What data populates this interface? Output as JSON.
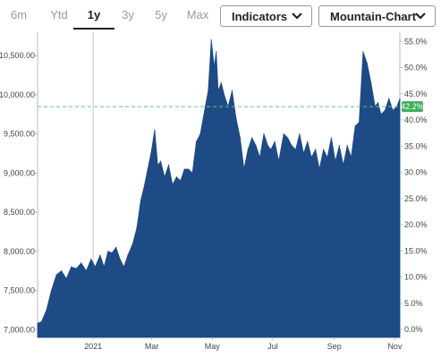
{
  "toolbar": {
    "tabs": [
      {
        "label": "6m",
        "active": false
      },
      {
        "label": "Ytd",
        "active": false
      },
      {
        "label": "1y",
        "active": true
      },
      {
        "label": "3y",
        "active": false
      },
      {
        "label": "5y",
        "active": false
      },
      {
        "label": "Max",
        "active": false
      }
    ],
    "indicators_label": "Indicators",
    "chart_type_label": "Mountain-Chart"
  },
  "colors": {
    "area_fill": "#1e4a86",
    "reference_line": "#5cc97a",
    "badge": "#3fae5a"
  },
  "chart_data": {
    "type": "area",
    "title": "",
    "xlabel": "",
    "ylabel": "",
    "x_tick_labels": [
      "2021",
      "Mar",
      "May",
      "Jul",
      "Sep",
      "Nov"
    ],
    "y_left_ticks": [
      "10,500.00",
      "10,000.00",
      "9,500.00",
      "9,000.00",
      "8,500.00",
      "8,000.00",
      "7,500.00",
      "7,000.00"
    ],
    "y_right_ticks": [
      "55.0%",
      "50.0%",
      "45.0%",
      "40.0%",
      "35.0%",
      "30.0%",
      "25.0%",
      "20.0%",
      "15.0%",
      "10.0%",
      "5.0%",
      "0.0%"
    ],
    "ylim": [
      6900,
      10800
    ],
    "reference_value": 9850,
    "current_change_label": "42.2%",
    "x": [
      "2020-11-06",
      "2020-11-10",
      "2020-11-15",
      "2020-11-20",
      "2020-11-25",
      "2020-11-30",
      "2020-12-05",
      "2020-12-10",
      "2020-12-15",
      "2020-12-20",
      "2020-12-25",
      "2020-12-30",
      "2021-01-03",
      "2021-01-08",
      "2021-01-12",
      "2021-01-16",
      "2021-01-20",
      "2021-01-24",
      "2021-01-28",
      "2021-02-01",
      "2021-02-05",
      "2021-02-10",
      "2021-02-14",
      "2021-02-18",
      "2021-02-21",
      "2021-02-25",
      "2021-03-01",
      "2021-03-04",
      "2021-03-07",
      "2021-03-10",
      "2021-03-14",
      "2021-03-18",
      "2021-03-22",
      "2021-03-26",
      "2021-03-30",
      "2021-04-03",
      "2021-04-07",
      "2021-04-11",
      "2021-04-15",
      "2021-04-19",
      "2021-04-24",
      "2021-04-27",
      "2021-04-30",
      "2021-05-03",
      "2021-05-05",
      "2021-05-07",
      "2021-05-10",
      "2021-05-13",
      "2021-05-17",
      "2021-05-21",
      "2021-05-25",
      "2021-05-29",
      "2021-06-02",
      "2021-06-06",
      "2021-06-10",
      "2021-06-14",
      "2021-06-18",
      "2021-06-22",
      "2021-06-26",
      "2021-06-29",
      "2021-07-03",
      "2021-07-07",
      "2021-07-12",
      "2021-07-16",
      "2021-07-20",
      "2021-07-24",
      "2021-07-28",
      "2021-08-01",
      "2021-08-05",
      "2021-08-09",
      "2021-08-13",
      "2021-08-17",
      "2021-08-21",
      "2021-08-25",
      "2021-08-29",
      "2021-09-02",
      "2021-09-06",
      "2021-09-10",
      "2021-09-14",
      "2021-09-18",
      "2021-09-22",
      "2021-09-26",
      "2021-09-30",
      "2021-10-04",
      "2021-10-08",
      "2021-10-12",
      "2021-10-15",
      "2021-10-18",
      "2021-10-22",
      "2021-10-26",
      "2021-10-30",
      "2021-11-03",
      "2021-11-06"
    ],
    "series": [
      {
        "values": [
          7080,
          7100,
          7250,
          7500,
          7700,
          7750,
          7650,
          7800,
          7780,
          7850,
          7750,
          7900,
          7800,
          7950,
          7800,
          8000,
          7980,
          8050,
          7900,
          7800,
          7950,
          8100,
          8300,
          8650,
          8800,
          9050,
          9300,
          9550,
          9100,
          9150,
          8950,
          9100,
          8850,
          8950,
          8900,
          9050,
          9050,
          9000,
          9400,
          9500,
          9850,
          10050,
          10700,
          10350,
          10550,
          10050,
          10150,
          10000,
          9850,
          10050,
          9700,
          9450,
          9050,
          9300,
          9450,
          9350,
          9200,
          9500,
          9350,
          9300,
          9400,
          9150,
          9500,
          9450,
          9350,
          9300,
          9500,
          9250,
          9400,
          9200,
          9300,
          9050,
          9300,
          9200,
          9450,
          9150,
          9350,
          9100,
          9350,
          9200,
          9600,
          9650,
          10550,
          10400,
          10150,
          9850,
          9900,
          9750,
          9800,
          9950,
          9800,
          9850,
          9950
        ]
      }
    ]
  }
}
